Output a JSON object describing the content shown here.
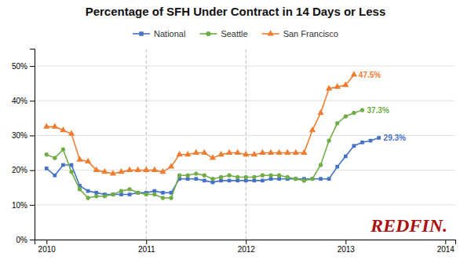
{
  "chart_data": {
    "type": "line",
    "title": "Percentage of SFH Under Contract in 14 Days or Less",
    "x": [
      2010,
      2010.0833333333333,
      2010.1666666666667,
      2010.25,
      2010.3333333333333,
      2010.4166666666667,
      2010.5,
      2010.5833333333333,
      2010.6666666666667,
      2010.75,
      2010.8333333333333,
      2010.9166666666667,
      2011,
      2011.0833333333333,
      2011.1666666666667,
      2011.25,
      2011.3333333333333,
      2011.4166666666667,
      2011.5,
      2011.5833333333333,
      2011.6666666666667,
      2011.75,
      2011.8333333333333,
      2011.9166666666667,
      2012,
      2012.0833333333333,
      2012.1666666666667,
      2012.25,
      2012.3333333333333,
      2012.4166666666667,
      2012.5,
      2012.5833333333333,
      2012.6666666666667,
      2012.75,
      2012.8333333333333,
      2012.9166666666667,
      2013,
      2013.0833333333333,
      2013.1666666666667,
      2013.25,
      2013.3333333333333
    ],
    "series": [
      {
        "name": "National",
        "color": "#4472c4",
        "marker": "square",
        "values": [
          0.205,
          0.185,
          0.215,
          0.215,
          0.155,
          0.14,
          0.135,
          0.13,
          0.13,
          0.13,
          0.13,
          0.135,
          0.135,
          0.14,
          0.135,
          0.135,
          0.175,
          0.175,
          0.175,
          0.17,
          0.165,
          0.17,
          0.17,
          0.17,
          0.17,
          0.17,
          0.17,
          0.175,
          0.175,
          0.175,
          0.175,
          0.175,
          0.175,
          0.175,
          0.175,
          0.21,
          0.24,
          0.27,
          0.28,
          0.285,
          0.293
        ],
        "value_labels": [
          null,
          null,
          null,
          null,
          null,
          null,
          null,
          null,
          null,
          null,
          null,
          null,
          null,
          null,
          null,
          null,
          null,
          null,
          null,
          null,
          null,
          null,
          null,
          null,
          null,
          null,
          null,
          null,
          null,
          null,
          null,
          null,
          null,
          null,
          null,
          null,
          null,
          null,
          null,
          null,
          "29.3%"
        ]
      },
      {
        "name": "Seattle",
        "color": "#70ad47",
        "marker": "circle",
        "values": [
          0.245,
          0.235,
          0.26,
          0.195,
          0.145,
          0.12,
          0.125,
          0.125,
          0.13,
          0.14,
          0.145,
          0.135,
          0.13,
          0.13,
          0.12,
          0.12,
          0.185,
          0.185,
          0.19,
          0.185,
          0.175,
          0.18,
          0.185,
          0.18,
          0.18,
          0.18,
          0.185,
          0.185,
          0.185,
          0.18,
          0.175,
          0.17,
          0.175,
          0.215,
          0.285,
          0.335,
          0.355,
          0.365,
          0.373,
          null,
          null
        ],
        "value_labels": [
          null,
          null,
          null,
          null,
          null,
          null,
          null,
          null,
          null,
          null,
          null,
          null,
          null,
          null,
          null,
          null,
          null,
          null,
          null,
          null,
          null,
          null,
          null,
          null,
          null,
          null,
          null,
          null,
          null,
          null,
          null,
          null,
          null,
          null,
          null,
          null,
          null,
          null,
          "37.3%",
          null,
          null
        ]
      },
      {
        "name": "San Francisco",
        "color": "#ed7d31",
        "marker": "triangle",
        "values": [
          0.325,
          0.325,
          0.315,
          0.305,
          0.23,
          0.225,
          0.2,
          0.195,
          0.19,
          0.195,
          0.2,
          0.2,
          0.2,
          0.2,
          0.195,
          0.21,
          0.245,
          0.245,
          0.25,
          0.25,
          0.235,
          0.245,
          0.25,
          0.25,
          0.245,
          0.245,
          0.25,
          0.25,
          0.25,
          0.25,
          0.25,
          0.25,
          0.315,
          0.365,
          0.435,
          0.44,
          0.445,
          0.475,
          null,
          null,
          null
        ],
        "value_labels": [
          null,
          null,
          null,
          null,
          null,
          null,
          null,
          null,
          null,
          null,
          null,
          null,
          null,
          null,
          null,
          null,
          null,
          null,
          null,
          null,
          null,
          null,
          null,
          null,
          null,
          null,
          null,
          null,
          null,
          null,
          null,
          null,
          null,
          null,
          null,
          null,
          null,
          "47.5%",
          null,
          null,
          null
        ]
      }
    ],
    "data_labels": true,
    "xlim": [
      2009.88,
      2014.1
    ],
    "xticks": [
      2010,
      2011,
      2012,
      2013,
      2014
    ],
    "ylim": [
      0,
      0.55
    ],
    "yticks": [
      {
        "value": 0,
        "label": "0%"
      },
      {
        "value": 0.1,
        "label": "10%"
      },
      {
        "value": 0.2,
        "label": "20%"
      },
      {
        "value": 0.3,
        "label": "30%"
      },
      {
        "value": 0.4,
        "label": "40%"
      },
      {
        "value": 0.5,
        "label": "50%"
      }
    ],
    "vlines": [
      2011.0,
      2012.0
    ],
    "grid": true,
    "legend": "top",
    "annotations": [
      {
        "text": "REDFIN.",
        "color": "#aa1111"
      }
    ]
  }
}
